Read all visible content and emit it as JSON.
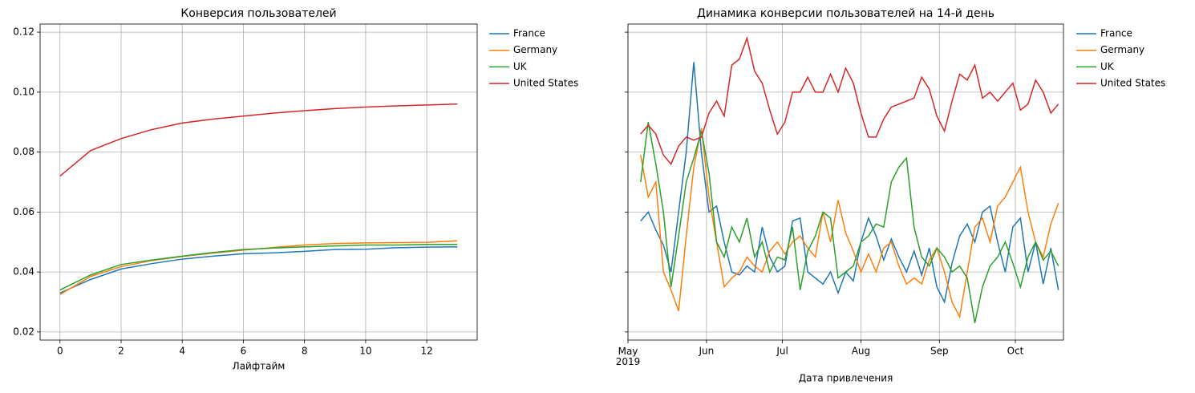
{
  "chart_data": [
    {
      "type": "line",
      "title": "Конверсия пользователей",
      "xlabel": "Лайфтайм",
      "x": [
        0,
        1,
        2,
        3,
        4,
        5,
        6,
        7,
        8,
        9,
        10,
        11,
        12,
        13
      ],
      "xlim": [
        -0.65,
        13.65
      ],
      "xticks": [
        0,
        2,
        4,
        6,
        8,
        10,
        12
      ],
      "ylim": [
        0.0173,
        0.1227
      ],
      "yticks": [
        {
          "value": 0.02,
          "label": "0.02"
        },
        {
          "value": 0.04,
          "label": "0.04"
        },
        {
          "value": 0.06,
          "label": "0.06"
        },
        {
          "value": 0.08,
          "label": "0.08"
        },
        {
          "value": 0.1,
          "label": "0.10"
        },
        {
          "value": 0.12,
          "label": "0.12"
        }
      ],
      "grid": true,
      "legend": "outside right",
      "series": [
        {
          "name": "France",
          "color": "#1f77b4",
          "values": [
            0.033,
            0.0375,
            0.041,
            0.0428,
            0.0443,
            0.0453,
            0.0461,
            0.0464,
            0.0469,
            0.0475,
            0.0476,
            0.0481,
            0.0483,
            0.0484
          ]
        },
        {
          "name": "Germany",
          "color": "#ff7f0e",
          "values": [
            0.0325,
            0.0385,
            0.0418,
            0.0438,
            0.0452,
            0.0463,
            0.0473,
            0.0482,
            0.049,
            0.0495,
            0.0497,
            0.0498,
            0.0499,
            0.0504
          ]
        },
        {
          "name": "UK",
          "color": "#2ca02c",
          "values": [
            0.034,
            0.039,
            0.0425,
            0.044,
            0.0453,
            0.0465,
            0.0475,
            0.048,
            0.0484,
            0.0487,
            0.049,
            0.049,
            0.0492,
            0.0492
          ]
        },
        {
          "name": "United States",
          "color": "#d62728",
          "values": [
            0.072,
            0.0805,
            0.0845,
            0.0875,
            0.0897,
            0.091,
            0.092,
            0.093,
            0.0938,
            0.0945,
            0.095,
            0.0954,
            0.0957,
            0.096
          ]
        }
      ]
    },
    {
      "type": "line",
      "title": "Динамика конверсии пользователей на 14-й день",
      "xlabel": "Дата привлечения",
      "x": [
        "2019-05-06",
        "2019-05-09",
        "2019-05-12",
        "2019-05-15",
        "2019-05-18",
        "2019-05-21",
        "2019-05-24",
        "2019-05-27",
        "2019-05-30",
        "2019-06-02",
        "2019-06-05",
        "2019-06-08",
        "2019-06-11",
        "2019-06-14",
        "2019-06-17",
        "2019-06-20",
        "2019-06-23",
        "2019-06-26",
        "2019-06-29",
        "2019-07-02",
        "2019-07-05",
        "2019-07-08",
        "2019-07-11",
        "2019-07-14",
        "2019-07-17",
        "2019-07-20",
        "2019-07-23",
        "2019-07-26",
        "2019-07-29",
        "2019-08-01",
        "2019-08-04",
        "2019-08-07",
        "2019-08-10",
        "2019-08-13",
        "2019-08-16",
        "2019-08-19",
        "2019-08-22",
        "2019-08-25",
        "2019-08-28",
        "2019-08-31",
        "2019-09-03",
        "2019-09-06",
        "2019-09-09",
        "2019-09-12",
        "2019-09-15",
        "2019-09-18",
        "2019-09-21",
        "2019-09-24",
        "2019-09-27",
        "2019-09-30",
        "2019-10-03",
        "2019-10-06",
        "2019-10-09",
        "2019-10-12",
        "2019-10-15",
        "2019-10-18"
      ],
      "xlim": [
        "2019-05-01",
        "2019-10-20"
      ],
      "xticks": [
        {
          "value": "2019-05-01",
          "label": "May 2019"
        },
        {
          "value": "2019-06-01",
          "label": "Jun"
        },
        {
          "value": "2019-07-01",
          "label": "Jul"
        },
        {
          "value": "2019-08-01",
          "label": "Aug"
        },
        {
          "value": "2019-09-01",
          "label": "Sep"
        },
        {
          "value": "2019-10-01",
          "label": "Oct"
        }
      ],
      "ylim": [
        0.0173,
        0.1227
      ],
      "yticks": [
        0.02,
        0.04,
        0.06,
        0.08,
        0.1,
        0.12
      ],
      "sharey": true,
      "grid": true,
      "legend": "outside right",
      "series": [
        {
          "name": "France",
          "color": "#1f77b4",
          "values": [
            0.057,
            0.06,
            0.054,
            0.049,
            0.04,
            0.06,
            0.08,
            0.11,
            0.08,
            0.06,
            0.062,
            0.05,
            0.04,
            0.039,
            0.042,
            0.04,
            0.055,
            0.045,
            0.04,
            0.042,
            0.057,
            0.058,
            0.04,
            0.038,
            0.036,
            0.04,
            0.033,
            0.04,
            0.037,
            0.05,
            0.058,
            0.052,
            0.044,
            0.051,
            0.045,
            0.04,
            0.047,
            0.039,
            0.048,
            0.035,
            0.03,
            0.043,
            0.052,
            0.056,
            0.05,
            0.06,
            0.062,
            0.05,
            0.04,
            0.055,
            0.058,
            0.04,
            0.05,
            0.036,
            0.048,
            0.034
          ]
        },
        {
          "name": "Germany",
          "color": "#ff7f0e",
          "values": [
            0.079,
            0.065,
            0.07,
            0.04,
            0.034,
            0.027,
            0.052,
            0.075,
            0.088,
            0.065,
            0.05,
            0.035,
            0.038,
            0.04,
            0.045,
            0.042,
            0.04,
            0.047,
            0.05,
            0.046,
            0.05,
            0.052,
            0.048,
            0.045,
            0.06,
            0.05,
            0.064,
            0.053,
            0.047,
            0.04,
            0.046,
            0.04,
            0.048,
            0.05,
            0.042,
            0.036,
            0.038,
            0.036,
            0.044,
            0.048,
            0.04,
            0.03,
            0.025,
            0.04,
            0.055,
            0.058,
            0.05,
            0.062,
            0.065,
            0.07,
            0.075,
            0.06,
            0.05,
            0.045,
            0.056,
            0.063
          ]
        },
        {
          "name": "UK",
          "color": "#2ca02c",
          "values": [
            0.07,
            0.09,
            0.076,
            0.06,
            0.035,
            0.052,
            0.07,
            0.078,
            0.087,
            0.073,
            0.05,
            0.045,
            0.055,
            0.05,
            0.058,
            0.045,
            0.05,
            0.04,
            0.045,
            0.044,
            0.055,
            0.034,
            0.047,
            0.052,
            0.06,
            0.058,
            0.038,
            0.04,
            0.042,
            0.05,
            0.052,
            0.056,
            0.055,
            0.07,
            0.075,
            0.078,
            0.055,
            0.045,
            0.042,
            0.048,
            0.045,
            0.04,
            0.042,
            0.038,
            0.023,
            0.035,
            0.042,
            0.045,
            0.05,
            0.043,
            0.035,
            0.045,
            0.05,
            0.044,
            0.047,
            0.042
          ]
        },
        {
          "name": "United States",
          "color": "#d62728",
          "values": [
            0.086,
            0.089,
            0.086,
            0.079,
            0.076,
            0.082,
            0.085,
            0.084,
            0.085,
            0.093,
            0.097,
            0.092,
            0.109,
            0.111,
            0.118,
            0.107,
            0.103,
            0.094,
            0.086,
            0.09,
            0.1,
            0.1,
            0.105,
            0.1,
            0.1,
            0.106,
            0.1,
            0.108,
            0.103,
            0.093,
            0.085,
            0.085,
            0.091,
            0.095,
            0.096,
            0.097,
            0.098,
            0.105,
            0.101,
            0.092,
            0.087,
            0.097,
            0.106,
            0.104,
            0.109,
            0.098,
            0.1,
            0.097,
            0.1,
            0.103,
            0.094,
            0.096,
            0.104,
            0.1,
            0.093,
            0.096
          ]
        }
      ]
    }
  ]
}
